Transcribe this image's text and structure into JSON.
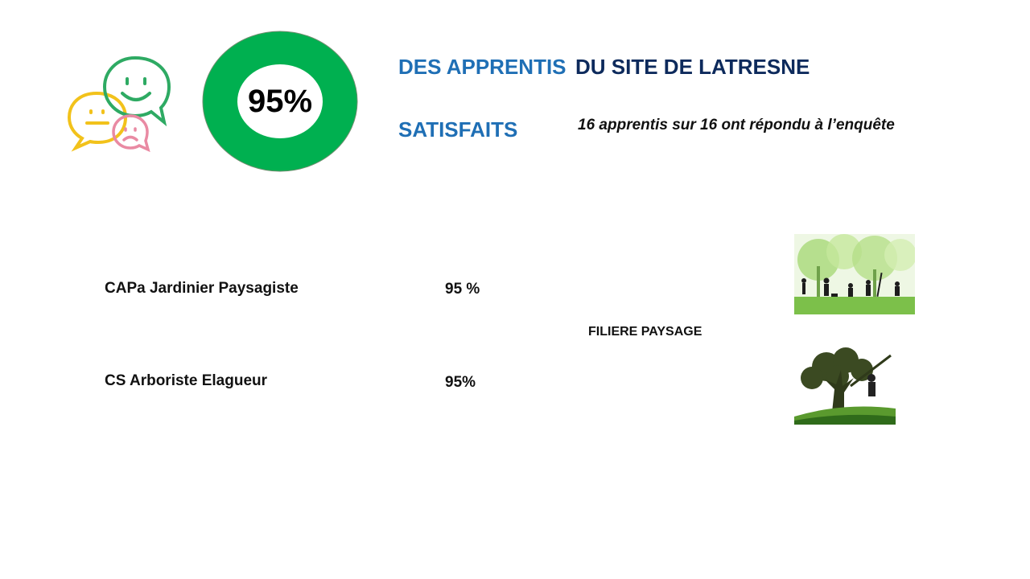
{
  "summary": {
    "percent_value": 95,
    "percent_label": "95%",
    "title_part1": "DES APPRENTIS",
    "title_part2": "DU SITE DE LATRESNE",
    "title_part3": "SATISFAITS",
    "response_note": "16 apprentis sur 16 ont répondu à l’enquête",
    "donut_color": "#00b050"
  },
  "rows": [
    {
      "label": "CAPa Jardinier Paysagiste",
      "value": "95 %"
    },
    {
      "label": "CS Arboriste Elagueur",
      "value": "95%"
    }
  ],
  "filiere": {
    "label": "FILIERE PAYSAGE"
  },
  "icons": {
    "bubbles": "chat-faces-icon",
    "gardeners": "gardeners-illustration",
    "tree": "arborist-tree-illustration"
  }
}
